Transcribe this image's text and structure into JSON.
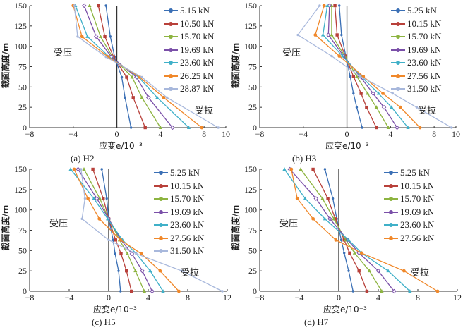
{
  "chart_data": [
    {
      "type": "line",
      "title": "",
      "caption": "(a) H2",
      "xlabel": "应变e/10⁻³",
      "ylabel": "截面高度/m",
      "xlim": [
        -8,
        10
      ],
      "ylim": [
        0,
        150
      ],
      "xticks": [
        -8,
        -4,
        0,
        4,
        8,
        10
      ],
      "yticks": [
        0,
        25,
        50,
        75,
        100,
        125,
        150
      ],
      "annotations": {
        "compression": "受压",
        "tension": "受拉"
      },
      "legend": "top-right",
      "y": [
        150,
        112,
        87,
        62,
        37,
        0
      ],
      "series": [
        {
          "name": "5.15 kN",
          "color": "#3a6fb5",
          "values": [
            -1.0,
            -0.6,
            -0.2,
            0.45,
            0.75,
            1.3
          ]
        },
        {
          "name": "10.50 kN",
          "color": "#b8403a",
          "values": [
            -1.7,
            -1.1,
            -0.3,
            0.9,
            1.5,
            2.6
          ]
        },
        {
          "name": "15.70 kN",
          "color": "#8db440",
          "values": [
            -2.5,
            -1.5,
            -0.4,
            1.4,
            2.3,
            4.0
          ]
        },
        {
          "name": "19.69 kN",
          "color": "#7a4fa8",
          "values": [
            -3.0,
            -1.9,
            -0.5,
            1.8,
            2.9,
            5.1
          ]
        },
        {
          "name": "23.60 kN",
          "color": "#3fb0c8",
          "values": [
            -3.8,
            -2.7,
            -0.7,
            2.0,
            3.7,
            6.6
          ]
        },
        {
          "name": "26.25 kN",
          "color": "#f0882a",
          "values": [
            -4.0,
            -3.2,
            -0.8,
            2.1,
            4.3,
            7.8
          ]
        },
        {
          "name": "28.87 kN",
          "color": "#a8b8dc",
          "values": [
            -3.9,
            -3.6,
            -1.0,
            2.3,
            4.6,
            9.3
          ]
        }
      ]
    },
    {
      "type": "line",
      "title": "",
      "caption": "(b) H3",
      "xlabel": "应变e/10⁻³",
      "ylabel": "截面高度/m",
      "xlim": [
        -8,
        10
      ],
      "ylim": [
        0,
        150
      ],
      "xticks": [
        -8,
        -4,
        0,
        4,
        8,
        10
      ],
      "yticks": [
        0,
        25,
        50,
        75,
        100,
        125,
        150
      ],
      "annotations": {
        "compression": "受压",
        "tension": "受拉"
      },
      "legend": "top-right",
      "y": [
        150,
        114,
        88,
        63,
        42,
        25,
        0
      ],
      "series": [
        {
          "name": "5.25 kN",
          "color": "#3a6fb5",
          "values": [
            -0.7,
            -0.5,
            -0.1,
            0.3,
            0.6,
            0.9,
            1.4
          ]
        },
        {
          "name": "10.15 kN",
          "color": "#b8403a",
          "values": [
            -1.1,
            -0.9,
            -0.15,
            0.6,
            1.3,
            1.8,
            2.7
          ]
        },
        {
          "name": "15.70 kN",
          "color": "#8db440",
          "values": [
            -1.4,
            -1.4,
            -0.2,
            0.9,
            1.9,
            2.7,
            3.8
          ]
        },
        {
          "name": "19.69 kN",
          "color": "#7a4fa8",
          "values": [
            -1.6,
            -1.7,
            -0.3,
            1.2,
            2.4,
            3.4,
            4.6
          ]
        },
        {
          "name": "23.60 kN",
          "color": "#3fb0c8",
          "values": [
            -1.8,
            -2.2,
            -0.4,
            1.3,
            2.9,
            4.1,
            5.6
          ]
        },
        {
          "name": "27.56 kN",
          "color": "#f0882a",
          "values": [
            -2.1,
            -2.9,
            -0.7,
            1.5,
            3.3,
            4.9,
            6.7
          ]
        },
        {
          "name": "31.50 kN",
          "color": "#a8b8dc",
          "values": [
            -2.5,
            -4.5,
            -1.4,
            1.2,
            4.2,
            6.4,
            9.6
          ]
        }
      ]
    },
    {
      "type": "line",
      "title": "",
      "caption": "(c) H5",
      "xlabel": "应变e/10⁻³",
      "ylabel": "截面高度/m",
      "xlim": [
        -8,
        12
      ],
      "ylim": [
        0,
        150
      ],
      "xticks": [
        -8,
        -4,
        0,
        4,
        8,
        12
      ],
      "yticks": [
        0,
        25,
        50,
        75,
        100,
        125,
        150
      ],
      "annotations": {
        "compression": "受压",
        "tension": "受拉"
      },
      "legend": "top-right",
      "y": [
        150,
        114,
        89,
        63,
        46,
        25,
        0
      ],
      "series": [
        {
          "name": "5.25 kN",
          "color": "#3a6fb5",
          "values": [
            -0.7,
            -0.2,
            0.0,
            0.45,
            0.65,
            1.0,
            1.2
          ]
        },
        {
          "name": "10.15 kN",
          "color": "#b8403a",
          "values": [
            -1.6,
            -0.55,
            0.0,
            0.7,
            1.25,
            1.8,
            2.3
          ]
        },
        {
          "name": "15.70 kN",
          "color": "#8db440",
          "values": [
            -2.5,
            -0.9,
            0.0,
            1.1,
            1.9,
            2.7,
            3.6
          ]
        },
        {
          "name": "19.69 kN",
          "color": "#7a4fa8",
          "values": [
            -3.1,
            -1.2,
            0.0,
            1.25,
            2.35,
            3.4,
            4.4
          ]
        },
        {
          "name": "23.60 kN",
          "color": "#3fb0c8",
          "values": [
            -3.85,
            -1.5,
            -0.1,
            1.4,
            2.8,
            4.2,
            5.5
          ]
        },
        {
          "name": "27.56 kN",
          "color": "#f0882a",
          "values": [
            -3.5,
            -2.1,
            -0.95,
            1.2,
            3.3,
            5.2,
            7.1
          ]
        },
        {
          "name": "31.50 kN",
          "color": "#a8b8dc",
          "values": [
            -2.8,
            -2.4,
            -2.7,
            0.0,
            2.8,
            7.4,
            11.5
          ]
        }
      ]
    },
    {
      "type": "line",
      "title": "",
      "caption": "(d) H7",
      "xlabel": "应变e/10⁻³",
      "ylabel": "截面高度/m",
      "xlim": [
        -8,
        12
      ],
      "ylim": [
        0,
        150
      ],
      "xticks": [
        -8,
        -4,
        0,
        4,
        8,
        12
      ],
      "yticks": [
        0,
        25,
        50,
        75,
        100,
        125,
        150
      ],
      "annotations": {
        "compression": "受压",
        "tension": "受拉"
      },
      "legend": "top-right",
      "y": [
        150,
        114,
        89,
        63,
        47,
        25,
        0
      ],
      "series": [
        {
          "name": "5.25 kN",
          "color": "#3a6fb5",
          "values": [
            -1.4,
            -0.6,
            -0.2,
            0.25,
            0.55,
            1.0,
            1.45
          ]
        },
        {
          "name": "10.15 kN",
          "color": "#b8403a",
          "values": [
            -2.6,
            -1.1,
            -0.35,
            0.55,
            1.1,
            2.05,
            2.85
          ]
        },
        {
          "name": "15.70 kN",
          "color": "#8db440",
          "values": [
            -3.85,
            -1.65,
            -0.5,
            0.7,
            1.6,
            3.1,
            4.35
          ]
        },
        {
          "name": "19.69 kN",
          "color": "#7a4fa8",
          "values": [
            -4.95,
            -2.3,
            -0.9,
            0.9,
            2.05,
            4.0,
            5.6
          ]
        },
        {
          "name": "23.60 kN",
          "color": "#3fb0c8",
          "values": [
            -5.5,
            -3.4,
            -1.4,
            1.0,
            2.3,
            5.0,
            7.2
          ]
        },
        {
          "name": "27.56 kN",
          "color": "#f0882a",
          "values": [
            -4.8,
            -4.2,
            -2.6,
            -0.3,
            2.3,
            6.6,
            10.0
          ]
        }
      ]
    }
  ]
}
